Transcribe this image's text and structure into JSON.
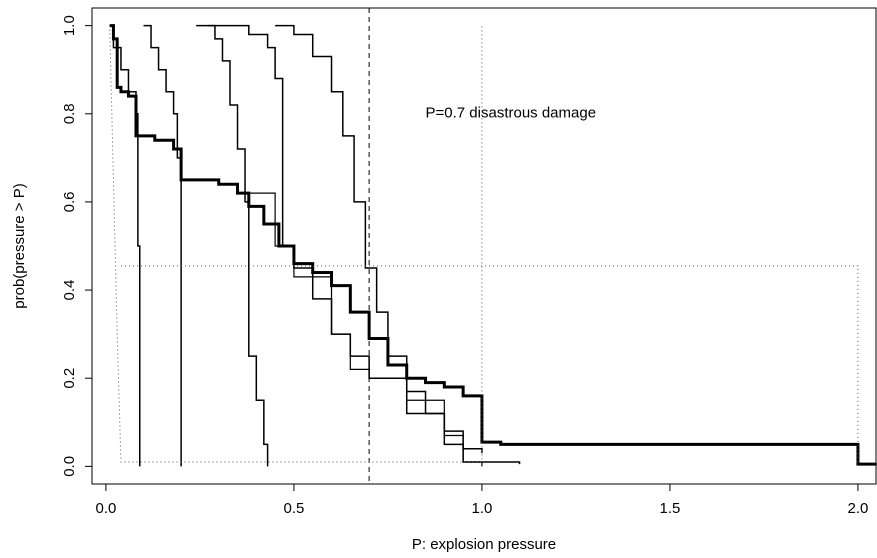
{
  "chart_data": {
    "type": "line",
    "drawstyle": "steps",
    "x_label": "P: explosion pressure",
    "y_label": "prob(pressure > P)",
    "annotation": "P=0.7  disastrous damage",
    "annotation_at": [
      0.85,
      0.8
    ],
    "vline": 0.7,
    "xlim": [
      -0.037,
      2.048
    ],
    "ylim": [
      -0.04,
      1.04
    ],
    "xticks": [
      {
        "value": 0,
        "label": "0.0"
      },
      0.5,
      {
        "value": 1,
        "label": "1.0"
      },
      1.5,
      {
        "value": 2,
        "label": "2.0"
      }
    ],
    "yticks": [
      {
        "value": 0,
        "label": "0.0"
      },
      0.2,
      0.4,
      0.6,
      0.8,
      {
        "value": 1,
        "label": "1.0"
      }
    ],
    "series": [
      {
        "color": "#000000",
        "width": 3,
        "dash": "none",
        "step": true,
        "x": [
          0.01,
          0.02,
          0.03,
          0.04,
          0.06,
          0.08,
          0.13,
          0.18,
          0.2,
          0.3,
          0.35,
          0.38,
          0.42,
          0.46,
          0.5,
          0.55,
          0.6,
          0.65,
          0.7,
          0.75,
          0.8,
          0.85,
          0.9,
          0.95,
          1.0,
          1.05,
          2.0,
          2.05
        ],
        "values": [
          1.0,
          0.97,
          0.86,
          0.85,
          0.84,
          0.75,
          0.74,
          0.72,
          0.65,
          0.64,
          0.62,
          0.59,
          0.55,
          0.5,
          0.46,
          0.44,
          0.41,
          0.35,
          0.29,
          0.23,
          0.2,
          0.19,
          0.18,
          0.16,
          0.055,
          0.05,
          0.005,
          0.005
        ]
      },
      {
        "color": "#000000",
        "width": 1.5,
        "dash": "none",
        "step": true,
        "x": [
          0.01,
          0.02,
          0.04,
          0.06,
          0.08,
          0.085,
          0.09
        ],
        "values": [
          1.0,
          0.95,
          0.9,
          0.85,
          0.8,
          0.5,
          0.0
        ]
      },
      {
        "color": "#000000",
        "width": 1.5,
        "dash": "none",
        "step": true,
        "x": [
          0.1,
          0.12,
          0.14,
          0.16,
          0.18,
          0.19,
          0.2
        ],
        "values": [
          1.0,
          0.95,
          0.9,
          0.85,
          0.8,
          0.7,
          0.0
        ]
      },
      {
        "color": "#000000",
        "width": 1.5,
        "dash": "none",
        "step": true,
        "x": [
          0.27,
          0.29,
          0.31,
          0.33,
          0.35,
          0.37,
          0.38,
          0.4,
          0.42,
          0.43
        ],
        "values": [
          1.0,
          0.97,
          0.92,
          0.82,
          0.72,
          0.6,
          0.25,
          0.15,
          0.05,
          0.0
        ]
      },
      {
        "color": "#000000",
        "width": 1.5,
        "dash": "none",
        "step": true,
        "x": [
          0.24,
          0.38,
          0.43,
          0.45,
          0.47,
          0.5,
          0.55,
          0.6,
          0.65,
          0.7,
          0.8,
          0.9,
          0.95,
          1.1
        ],
        "values": [
          1.0,
          0.98,
          0.95,
          0.88,
          0.5,
          0.45,
          0.38,
          0.3,
          0.25,
          0.2,
          0.12,
          0.05,
          0.01,
          0.005
        ]
      },
      {
        "color": "#000000",
        "width": 1.5,
        "dash": "none",
        "step": true,
        "x": [
          0.45,
          0.5,
          0.55,
          0.6,
          0.63,
          0.66,
          0.69,
          0.72,
          0.75,
          0.8,
          0.85,
          0.9,
          0.95,
          1.0
        ],
        "values": [
          1.0,
          0.98,
          0.93,
          0.85,
          0.75,
          0.6,
          0.45,
          0.35,
          0.25,
          0.17,
          0.12,
          0.08,
          0.04,
          0.03
        ]
      },
      {
        "color": "#000000",
        "width": 1.2,
        "dash": "none",
        "step": true,
        "x": [
          0.38,
          0.45,
          0.5,
          0.6,
          0.65,
          0.7,
          0.8,
          0.9,
          0.95,
          1.0
        ],
        "values": [
          0.62,
          0.5,
          0.43,
          0.3,
          0.22,
          0.2,
          0.15,
          0.07,
          0.01,
          0.0
        ]
      },
      {
        "color": "#555555",
        "width": 1,
        "dash": "1 3",
        "step": false,
        "x": [
          0.01,
          0.02,
          0.03,
          0.04,
          1.0,
          1.0
        ],
        "values": [
          1.0,
          0.65,
          0.3,
          0.01,
          0.01,
          1.0
        ]
      },
      {
        "color": "#555555",
        "width": 1,
        "dash": "1 3",
        "step": false,
        "x": [
          0.04,
          2.0,
          2.0
        ],
        "values": [
          0.455,
          0.455,
          0.01
        ]
      }
    ]
  }
}
